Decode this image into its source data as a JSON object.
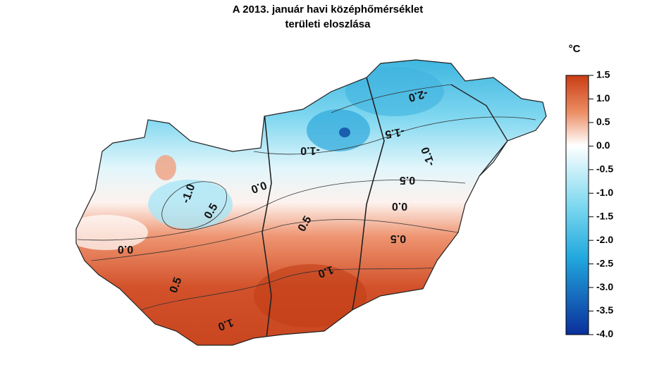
{
  "title": [
    "A 2013. január  havi középhőmérséklet",
    "területi eloszlása"
  ],
  "legend": {
    "unit": "°C",
    "lim": [
      -4,
      1.5
    ],
    "ticks": [
      1.5,
      {
        "value": 1,
        "label": "1.0"
      },
      0.5,
      {
        "value": 0,
        "label": "0.0"
      },
      -0.5,
      {
        "value": -1,
        "label": "-1.0"
      },
      -1.5,
      {
        "value": -2,
        "label": "-2.0"
      },
      -2.5,
      {
        "value": -3,
        "label": "-3.0"
      },
      -3.5,
      {
        "value": -4,
        "label": "-4.0"
      }
    ]
  },
  "contour_labels": [
    "-2.0",
    "-1.5",
    "-1.0",
    "-1.0",
    "0.5",
    "0.0",
    "-1.0",
    "0.5",
    "0.0",
    "0.5",
    "0.5",
    "0.0",
    "1.0",
    "0.5",
    "1.0"
  ]
}
